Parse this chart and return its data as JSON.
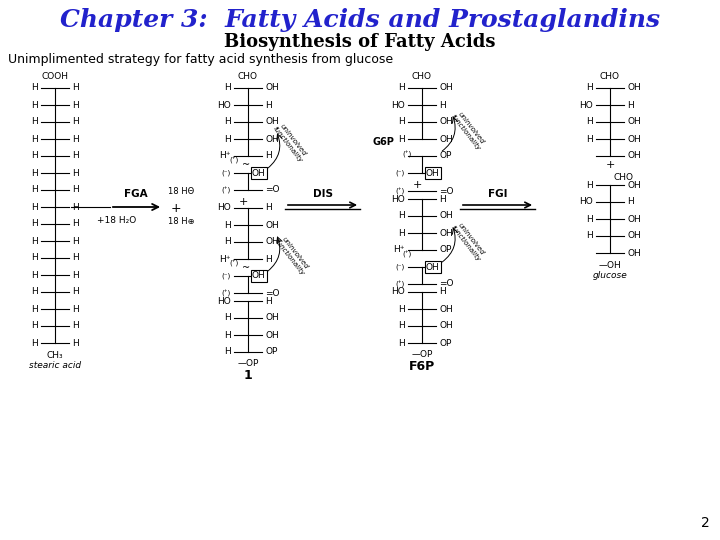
{
  "title": "Chapter 3:  Fatty Acids and Prostaglandins",
  "subtitle": "Biosynthesis of Fatty Acids",
  "body_text": "Unimplimented strategy for fatty acid synthesis from glucose",
  "title_color": "#2222cc",
  "subtitle_color": "#000000",
  "body_color": "#000000",
  "bg_color": "#ffffff",
  "page_number": "2",
  "title_fontsize": 18,
  "subtitle_fontsize": 13,
  "body_fontsize": 9
}
